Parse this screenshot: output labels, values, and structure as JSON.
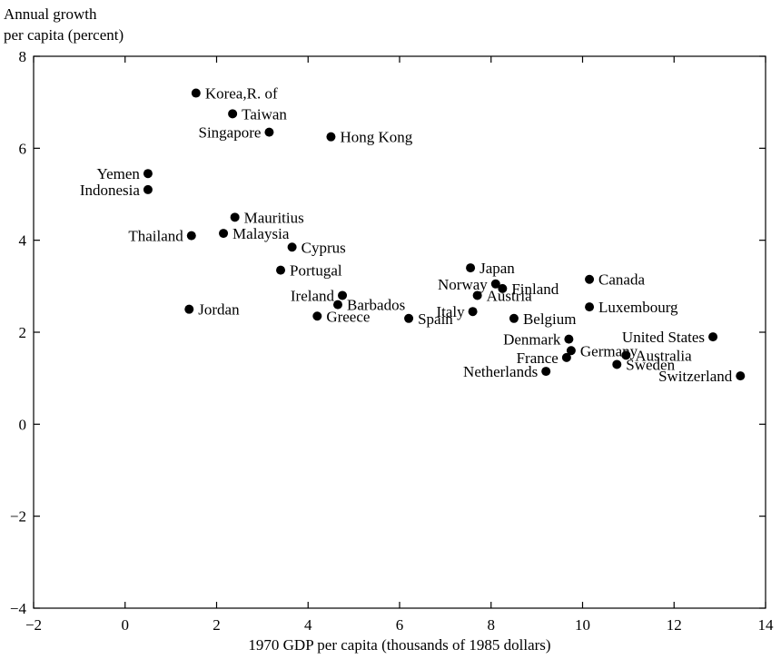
{
  "chart_data": {
    "type": "scatter",
    "xlabel": "1970 GDP per capita (thousands of 1985 dollars)",
    "ylabel_line1": "Annual growth",
    "ylabel_line2": "per capita (percent)",
    "xlim": [
      -2,
      14
    ],
    "ylim": [
      -4,
      8
    ],
    "xticks": [
      -2,
      0,
      2,
      4,
      6,
      8,
      10,
      12,
      14
    ],
    "yticks": [
      -4,
      -2,
      0,
      2,
      4,
      6,
      8
    ],
    "xtick_labels": [
      "−2",
      "0",
      "2",
      "4",
      "6",
      "8",
      "10",
      "12",
      "14"
    ],
    "ytick_labels": [
      "−4",
      "−2",
      "0",
      "2",
      "4",
      "6",
      "8"
    ],
    "points": [
      {
        "label": "Korea,R. of",
        "x": 1.55,
        "y": 7.2,
        "side": "right"
      },
      {
        "label": "Taiwan",
        "x": 2.35,
        "y": 6.75,
        "side": "right"
      },
      {
        "label": "Singapore",
        "x": 3.15,
        "y": 6.35,
        "side": "left"
      },
      {
        "label": "Hong Kong",
        "x": 4.5,
        "y": 6.25,
        "side": "right"
      },
      {
        "label": "Yemen",
        "x": 0.5,
        "y": 5.45,
        "side": "left"
      },
      {
        "label": "Indonesia",
        "x": 0.5,
        "y": 5.1,
        "side": "left"
      },
      {
        "label": "Mauritius",
        "x": 2.4,
        "y": 4.5,
        "side": "right"
      },
      {
        "label": "Thailand",
        "x": 1.45,
        "y": 4.1,
        "side": "left"
      },
      {
        "label": "Malaysia",
        "x": 2.15,
        "y": 4.15,
        "side": "right"
      },
      {
        "label": "Cyprus",
        "x": 3.65,
        "y": 3.85,
        "side": "right"
      },
      {
        "label": "Portugal",
        "x": 3.4,
        "y": 3.35,
        "side": "right"
      },
      {
        "label": "Ireland",
        "x": 4.75,
        "y": 2.8,
        "side": "left"
      },
      {
        "label": "Barbados",
        "x": 4.65,
        "y": 2.6,
        "side": "right"
      },
      {
        "label": "Jordan",
        "x": 1.4,
        "y": 2.5,
        "side": "right"
      },
      {
        "label": "Greece",
        "x": 4.2,
        "y": 2.35,
        "side": "right"
      },
      {
        "label": "Spain",
        "x": 6.2,
        "y": 2.3,
        "side": "right"
      },
      {
        "label": "Japan",
        "x": 7.55,
        "y": 3.4,
        "side": "right"
      },
      {
        "label": "Norway",
        "x": 8.1,
        "y": 3.05,
        "side": "left"
      },
      {
        "label": "Finland",
        "x": 8.25,
        "y": 2.95,
        "side": "right"
      },
      {
        "label": "Austria",
        "x": 7.7,
        "y": 2.8,
        "side": "right"
      },
      {
        "label": "Italy",
        "x": 7.6,
        "y": 2.45,
        "side": "left"
      },
      {
        "label": "Belgium",
        "x": 8.5,
        "y": 2.3,
        "side": "right"
      },
      {
        "label": "Canada",
        "x": 10.15,
        "y": 3.15,
        "side": "right"
      },
      {
        "label": "Luxembourg",
        "x": 10.15,
        "y": 2.55,
        "side": "right"
      },
      {
        "label": "United States",
        "x": 12.85,
        "y": 1.9,
        "side": "left"
      },
      {
        "label": "Denmark",
        "x": 9.7,
        "y": 1.85,
        "side": "left"
      },
      {
        "label": "Germany",
        "x": 9.75,
        "y": 1.6,
        "side": "right"
      },
      {
        "label": "France",
        "x": 9.65,
        "y": 1.45,
        "side": "left"
      },
      {
        "label": "Australia",
        "x": 10.95,
        "y": 1.5,
        "side": "right"
      },
      {
        "label": "Sweden",
        "x": 10.75,
        "y": 1.3,
        "side": "right"
      },
      {
        "label": "Netherlands",
        "x": 9.2,
        "y": 1.15,
        "side": "left"
      },
      {
        "label": "Switzerland",
        "x": 13.45,
        "y": 1.05,
        "side": "left"
      }
    ]
  }
}
